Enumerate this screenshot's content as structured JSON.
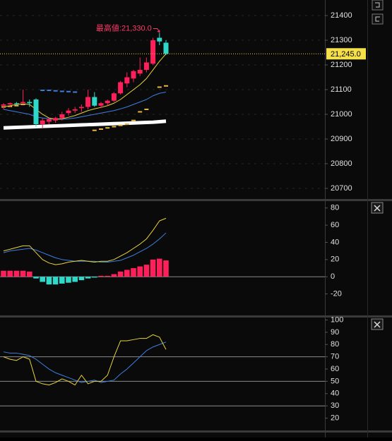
{
  "chart_data": [
    {
      "type": "candlestick",
      "ylim": [
        20657,
        21463
      ],
      "yticks": [
        20700,
        20800,
        20900,
        21000,
        21100,
        21200,
        21300,
        21400
      ],
      "grid": true,
      "up_color": "#ff1f5a",
      "down_color": "#2fd8c8",
      "open": [
        21035,
        21040,
        21045,
        21045,
        21050,
        21060,
        20960,
        20970,
        20975,
        20985,
        21005,
        21015,
        21025,
        21030,
        21070,
        21035,
        21045,
        21055,
        21085,
        21125,
        21145,
        21165,
        21180,
        21205,
        21310,
        21290
      ],
      "high": [
        21045,
        21048,
        21050,
        21100,
        21060,
        21065,
        20985,
        20985,
        20990,
        21010,
        21025,
        21030,
        21040,
        21100,
        21090,
        21050,
        21060,
        21090,
        21135,
        21170,
        21180,
        21230,
        21230,
        21310,
        21330,
        21300
      ],
      "low": [
        21020,
        21030,
        21035,
        21040,
        21030,
        20950,
        20945,
        20960,
        20965,
        20975,
        20995,
        21005,
        21010,
        21020,
        21030,
        21025,
        21035,
        21050,
        21080,
        21110,
        21130,
        21155,
        21170,
        21200,
        21280,
        21240
      ],
      "close": [
        21040,
        21045,
        21042,
        21050,
        21045,
        20960,
        20975,
        20980,
        20985,
        21000,
        21015,
        21020,
        21030,
        21070,
        21035,
        21045,
        21055,
        21085,
        21130,
        21150,
        21175,
        21180,
        21210,
        21300,
        21295,
        21245
      ],
      "lines": [
        {
          "color": "#ffffff",
          "width": 5,
          "values": [
            20945,
            20946,
            20947,
            20948,
            20949,
            20950,
            20951,
            20952,
            20953,
            20954,
            20955,
            20956,
            20957,
            20958,
            20959,
            20960,
            20961,
            20962,
            20963,
            20964,
            20965,
            20966,
            20967,
            20968,
            20970,
            20972
          ]
        },
        {
          "color": "#3d7fe0",
          "width": 1,
          "values": [
            21020,
            21015,
            21010,
            21005,
            21000,
            20990,
            20985,
            20982,
            20980,
            20980,
            20982,
            20985,
            20990,
            20995,
            21000,
            21005,
            21010,
            21015,
            21022,
            21030,
            21040,
            21050,
            21060,
            21075,
            21085,
            21090
          ]
        },
        {
          "color": "#e8d43a",
          "width": 1,
          "values": [
            21030,
            21035,
            21040,
            21042,
            21040,
            21020,
            21000,
            20985,
            20980,
            20982,
            20988,
            20995,
            21005,
            21015,
            21022,
            21028,
            21035,
            21045,
            21060,
            21080,
            21100,
            21120,
            21145,
            21180,
            21215,
            21245
          ]
        }
      ],
      "dashes": [
        {
          "color": "#3d7fe0",
          "values": [
            null,
            null,
            null,
            null,
            null,
            null,
            21097,
            21097,
            21095,
            21093,
            21092,
            21090,
            null,
            null,
            null,
            null,
            null,
            null,
            null,
            null,
            null,
            null,
            null,
            null,
            null,
            null
          ]
        },
        {
          "color": "#e8b73a",
          "values": [
            21030,
            21032,
            21035,
            21040,
            null,
            null,
            null,
            null,
            null,
            null,
            null,
            null,
            null,
            null,
            20935,
            20940,
            20945,
            20950,
            20955,
            20960,
            20975,
            21010,
            21020,
            null,
            21110,
            21115
          ]
        }
      ],
      "last_price": {
        "value": 21245,
        "label": "21,245.0"
      },
      "annotation": {
        "text": "最高値:21,330.0",
        "value": 21330,
        "index": 24
      }
    },
    {
      "type": "macd",
      "ylim": [
        -45,
        88
      ],
      "yticks": [
        80,
        60,
        40,
        20,
        0,
        -20
      ],
      "hlines": [
        0
      ],
      "up_color": "#ff1f5a",
      "down_color": "#2fd8c8",
      "bars": [
        7,
        7,
        7,
        7,
        6,
        -2,
        -6,
        -9,
        -9,
        -8,
        -7,
        -6,
        -4,
        -2,
        -1,
        1,
        1,
        3,
        6,
        8,
        10,
        12,
        14,
        20,
        21,
        19
      ],
      "lines": [
        {
          "color": "#3d7fe0",
          "width": 1,
          "values": [
            28,
            30,
            31,
            32,
            33,
            31,
            28,
            25,
            22,
            20,
            19,
            18,
            18,
            18,
            18,
            17,
            17,
            18,
            19,
            22,
            25,
            29,
            33,
            38,
            44,
            51
          ]
        },
        {
          "color": "#e8d43a",
          "width": 1,
          "values": [
            30,
            32,
            34,
            36,
            36,
            28,
            20,
            16,
            14,
            15,
            17,
            18,
            19,
            18,
            17,
            18,
            18,
            20,
            24,
            28,
            33,
            38,
            44,
            54,
            65,
            68
          ]
        }
      ]
    },
    {
      "type": "line",
      "ylim": [
        10,
        102
      ],
      "yticks": [
        100,
        90,
        80,
        70,
        60,
        50,
        40,
        30,
        20
      ],
      "hlines": [
        70,
        50,
        30
      ],
      "lines": [
        {
          "color": "#3d7fe0",
          "width": 1,
          "values": [
            74,
            73,
            73,
            72,
            71,
            68,
            64,
            60,
            57,
            55,
            53,
            51,
            49,
            50,
            51,
            49,
            50,
            51,
            56,
            60,
            65,
            70,
            75,
            78,
            80,
            82
          ]
        },
        {
          "color": "#e8d43a",
          "width": 1,
          "values": [
            70,
            68,
            67,
            70,
            68,
            50,
            48,
            47,
            49,
            52,
            50,
            47,
            55,
            48,
            50,
            50,
            55,
            70,
            83,
            83,
            84,
            85,
            85,
            88,
            86,
            76
          ]
        }
      ]
    }
  ]
}
